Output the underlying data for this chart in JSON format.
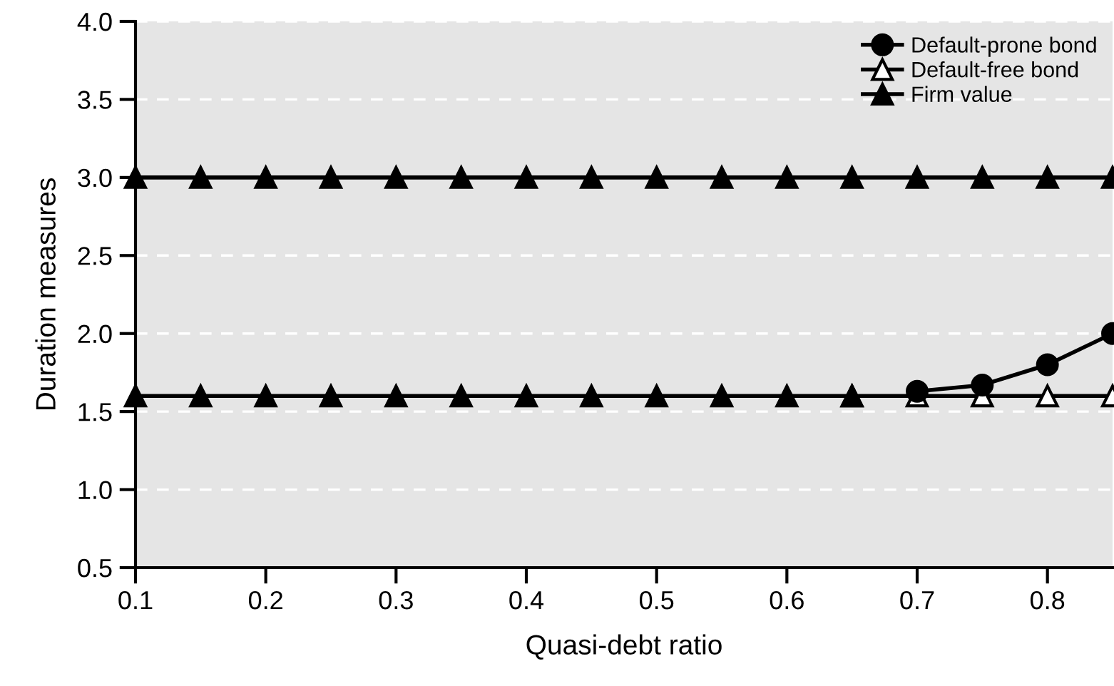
{
  "chart_data": {
    "type": "line",
    "xlabel": "Quasi-debt ratio",
    "ylabel": "Duration measures",
    "x": [
      0.1,
      0.15,
      0.2,
      0.25,
      0.3,
      0.35,
      0.4,
      0.45,
      0.5,
      0.55,
      0.6,
      0.65,
      0.7,
      0.75,
      0.8,
      0.85
    ],
    "series": [
      {
        "name": "Default-prone bond",
        "color": "#000000",
        "marker": "circle",
        "values": [
          null,
          null,
          null,
          null,
          null,
          null,
          null,
          null,
          null,
          null,
          null,
          null,
          1.63,
          1.67,
          1.8,
          2.0
        ]
      },
      {
        "name": "Default-free bond",
        "color": "#ffffff",
        "marker": "triangle",
        "values": [
          null,
          null,
          null,
          null,
          null,
          null,
          null,
          null,
          null,
          null,
          null,
          1.6,
          1.6,
          1.6,
          1.6,
          1.6
        ]
      },
      {
        "name": "Firm value",
        "color": "#000000",
        "marker": "triangle",
        "values": [
          3.0,
          3.0,
          3.0,
          3.0,
          3.0,
          3.0,
          3.0,
          3.0,
          3.0,
          3.0,
          3.0,
          3.0,
          3.0,
          3.0,
          3.0,
          3.0
        ]
      },
      {
        "color": "#000000",
        "marker": "triangle",
        "values": [
          1.6,
          1.6,
          1.6,
          1.6,
          1.6,
          1.6,
          1.6,
          1.6,
          1.6,
          1.6,
          1.6,
          1.6,
          null,
          null,
          null,
          null
        ]
      }
    ],
    "xlim": [
      0.1,
      0.85
    ],
    "xticks": [
      0.1,
      0.2,
      0.3,
      0.4,
      0.5,
      0.6,
      0.7,
      0.8
    ],
    "ylim": [
      0.5,
      4.0
    ],
    "yticks": [
      0.5,
      {
        "value": 1.0,
        "label": "1.0"
      },
      1.5,
      {
        "value": 2.0,
        "label": "2.0"
      },
      2.5,
      {
        "value": 3.0,
        "label": "3.0"
      },
      3.5,
      {
        "value": 4.0,
        "label": "4.0"
      }
    ],
    "grid": "y",
    "legend": "top right",
    "line_style": "solid"
  }
}
